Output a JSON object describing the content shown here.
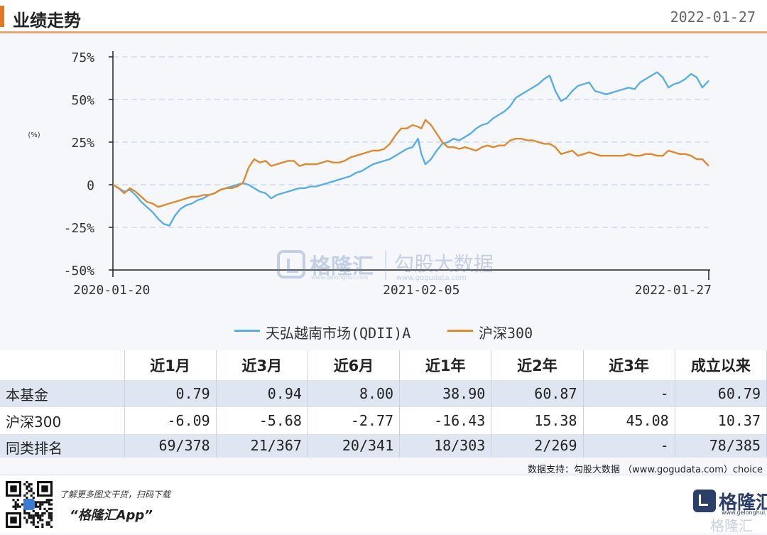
{
  "header": {
    "title": "业绩走势",
    "date": "2022-01-27"
  },
  "colors": {
    "fund": "#5aaee6",
    "index": "#de8a2e",
    "accent": "#e07a2a",
    "grid": "#c8d6ea"
  },
  "chart_data": {
    "type": "line",
    "ylabel": "(%)",
    "yticks": [
      "75%",
      "50%",
      "25%",
      "0",
      "-25%",
      "-50%"
    ],
    "ytick_values": [
      75,
      50,
      25,
      0,
      -25,
      -50
    ],
    "ylim": [
      -50,
      75
    ],
    "xlim": [
      "2020-01-20",
      "2022-01-27"
    ],
    "xticks": [
      "2020-01-20",
      "2021-02-05",
      "2022-01-27"
    ],
    "grid": true,
    "legend_position": "bottom",
    "series": [
      {
        "name": "天弘越南市场(QDII)A",
        "color": "#5aaee6",
        "points": [
          [
            "2020-01-20",
            0
          ],
          [
            "2020-01-27",
            -2
          ],
          [
            "2020-02-03",
            -4
          ],
          [
            "2020-02-10",
            -3
          ],
          [
            "2020-02-17",
            -6
          ],
          [
            "2020-02-24",
            -10
          ],
          [
            "2020-03-02",
            -13
          ],
          [
            "2020-03-09",
            -16
          ],
          [
            "2020-03-16",
            -20
          ],
          [
            "2020-03-23",
            -23
          ],
          [
            "2020-03-30",
            -24
          ],
          [
            "2020-04-06",
            -18
          ],
          [
            "2020-04-13",
            -14
          ],
          [
            "2020-04-20",
            -12
          ],
          [
            "2020-04-27",
            -11
          ],
          [
            "2020-05-04",
            -9
          ],
          [
            "2020-05-11",
            -8
          ],
          [
            "2020-05-18",
            -6
          ],
          [
            "2020-05-25",
            -5
          ],
          [
            "2020-06-01",
            -3
          ],
          [
            "2020-06-08",
            -2
          ],
          [
            "2020-06-15",
            -1
          ],
          [
            "2020-06-22",
            0
          ],
          [
            "2020-06-29",
            1
          ],
          [
            "2020-07-06",
            0
          ],
          [
            "2020-07-13",
            -2
          ],
          [
            "2020-07-20",
            -4
          ],
          [
            "2020-07-27",
            -5
          ],
          [
            "2020-08-03",
            -8
          ],
          [
            "2020-08-10",
            -6
          ],
          [
            "2020-08-17",
            -5
          ],
          [
            "2020-08-24",
            -4
          ],
          [
            "2020-08-31",
            -3
          ],
          [
            "2020-09-07",
            -2
          ],
          [
            "2020-09-14",
            -2
          ],
          [
            "2020-09-21",
            -1
          ],
          [
            "2020-09-28",
            -1
          ],
          [
            "2020-10-05",
            0
          ],
          [
            "2020-10-12",
            1
          ],
          [
            "2020-10-19",
            2
          ],
          [
            "2020-10-26",
            3
          ],
          [
            "2020-11-02",
            4
          ],
          [
            "2020-11-09",
            5
          ],
          [
            "2020-11-16",
            7
          ],
          [
            "2020-11-23",
            8
          ],
          [
            "2020-11-30",
            10
          ],
          [
            "2020-12-07",
            12
          ],
          [
            "2020-12-14",
            13
          ],
          [
            "2020-12-21",
            14
          ],
          [
            "2020-12-28",
            15
          ],
          [
            "2021-01-04",
            17
          ],
          [
            "2021-01-11",
            19
          ],
          [
            "2021-01-18",
            21
          ],
          [
            "2021-01-25",
            22
          ],
          [
            "2021-02-01",
            27
          ],
          [
            "2021-02-05",
            18
          ],
          [
            "2021-02-10",
            12
          ],
          [
            "2021-02-17",
            15
          ],
          [
            "2021-02-24",
            20
          ],
          [
            "2021-03-03",
            24
          ],
          [
            "2021-03-10",
            25
          ],
          [
            "2021-03-17",
            27
          ],
          [
            "2021-03-24",
            26
          ],
          [
            "2021-03-31",
            28
          ],
          [
            "2021-04-07",
            30
          ],
          [
            "2021-04-14",
            33
          ],
          [
            "2021-04-21",
            35
          ],
          [
            "2021-04-28",
            36
          ],
          [
            "2021-05-05",
            39
          ],
          [
            "2021-05-12",
            41
          ],
          [
            "2021-05-19",
            43
          ],
          [
            "2021-05-26",
            46
          ],
          [
            "2021-06-02",
            51
          ],
          [
            "2021-06-09",
            53
          ],
          [
            "2021-06-16",
            55
          ],
          [
            "2021-06-23",
            57
          ],
          [
            "2021-06-30",
            59
          ],
          [
            "2021-07-07",
            62
          ],
          [
            "2021-07-14",
            64
          ],
          [
            "2021-07-21",
            55
          ],
          [
            "2021-07-28",
            49
          ],
          [
            "2021-08-04",
            51
          ],
          [
            "2021-08-11",
            55
          ],
          [
            "2021-08-18",
            58
          ],
          [
            "2021-08-25",
            59
          ],
          [
            "2021-09-01",
            60
          ],
          [
            "2021-09-08",
            55
          ],
          [
            "2021-09-15",
            54
          ],
          [
            "2021-09-22",
            53
          ],
          [
            "2021-09-29",
            54
          ],
          [
            "2021-10-06",
            55
          ],
          [
            "2021-10-13",
            56
          ],
          [
            "2021-10-20",
            57
          ],
          [
            "2021-10-27",
            56
          ],
          [
            "2021-11-03",
            60
          ],
          [
            "2021-11-10",
            62
          ],
          [
            "2021-11-17",
            64
          ],
          [
            "2021-11-24",
            66
          ],
          [
            "2021-12-01",
            63
          ],
          [
            "2021-12-08",
            57
          ],
          [
            "2021-12-15",
            59
          ],
          [
            "2021-12-22",
            60
          ],
          [
            "2021-12-29",
            62
          ],
          [
            "2022-01-05",
            65
          ],
          [
            "2022-01-12",
            63
          ],
          [
            "2022-01-19",
            57
          ],
          [
            "2022-01-27",
            61
          ]
        ]
      },
      {
        "name": "沪深300",
        "color": "#de8a2e",
        "points": [
          [
            "2020-01-20",
            0
          ],
          [
            "2020-01-27",
            -2
          ],
          [
            "2020-02-03",
            -5
          ],
          [
            "2020-02-10",
            -2
          ],
          [
            "2020-02-17",
            -4
          ],
          [
            "2020-02-24",
            -7
          ],
          [
            "2020-03-02",
            -10
          ],
          [
            "2020-03-09",
            -11
          ],
          [
            "2020-03-16",
            -13
          ],
          [
            "2020-03-23",
            -12
          ],
          [
            "2020-03-30",
            -11
          ],
          [
            "2020-04-06",
            -10
          ],
          [
            "2020-04-13",
            -9
          ],
          [
            "2020-04-20",
            -8
          ],
          [
            "2020-04-27",
            -7
          ],
          [
            "2020-05-04",
            -7
          ],
          [
            "2020-05-11",
            -6
          ],
          [
            "2020-05-18",
            -6
          ],
          [
            "2020-05-25",
            -5
          ],
          [
            "2020-06-01",
            -3
          ],
          [
            "2020-06-08",
            -2
          ],
          [
            "2020-06-15",
            -2
          ],
          [
            "2020-06-22",
            -1
          ],
          [
            "2020-06-29",
            1
          ],
          [
            "2020-07-06",
            10
          ],
          [
            "2020-07-13",
            15
          ],
          [
            "2020-07-20",
            13
          ],
          [
            "2020-07-27",
            14
          ],
          [
            "2020-08-03",
            11
          ],
          [
            "2020-08-10",
            12
          ],
          [
            "2020-08-17",
            13
          ],
          [
            "2020-08-24",
            14
          ],
          [
            "2020-08-31",
            14
          ],
          [
            "2020-09-07",
            11
          ],
          [
            "2020-09-14",
            12
          ],
          [
            "2020-09-21",
            12
          ],
          [
            "2020-09-28",
            12
          ],
          [
            "2020-10-05",
            13
          ],
          [
            "2020-10-12",
            14
          ],
          [
            "2020-10-19",
            13
          ],
          [
            "2020-10-26",
            13
          ],
          [
            "2020-11-02",
            14
          ],
          [
            "2020-11-09",
            16
          ],
          [
            "2020-11-16",
            17
          ],
          [
            "2020-11-23",
            18
          ],
          [
            "2020-11-30",
            19
          ],
          [
            "2020-12-07",
            20
          ],
          [
            "2020-12-14",
            20
          ],
          [
            "2020-12-21",
            21
          ],
          [
            "2020-12-28",
            24
          ],
          [
            "2021-01-04",
            29
          ],
          [
            "2021-01-11",
            33
          ],
          [
            "2021-01-18",
            33
          ],
          [
            "2021-01-25",
            35
          ],
          [
            "2021-02-01",
            34
          ],
          [
            "2021-02-05",
            33
          ],
          [
            "2021-02-10",
            38
          ],
          [
            "2021-02-17",
            35
          ],
          [
            "2021-02-24",
            30
          ],
          [
            "2021-03-03",
            25
          ],
          [
            "2021-03-10",
            22
          ],
          [
            "2021-03-17",
            22
          ],
          [
            "2021-03-24",
            21
          ],
          [
            "2021-03-31",
            22
          ],
          [
            "2021-04-07",
            21
          ],
          [
            "2021-04-14",
            20
          ],
          [
            "2021-04-21",
            22
          ],
          [
            "2021-04-28",
            23
          ],
          [
            "2021-05-05",
            22
          ],
          [
            "2021-05-12",
            23
          ],
          [
            "2021-05-19",
            23
          ],
          [
            "2021-05-26",
            26
          ],
          [
            "2021-06-02",
            27
          ],
          [
            "2021-06-09",
            27
          ],
          [
            "2021-06-16",
            26
          ],
          [
            "2021-06-23",
            26
          ],
          [
            "2021-06-30",
            25
          ],
          [
            "2021-07-07",
            24
          ],
          [
            "2021-07-14",
            24
          ],
          [
            "2021-07-21",
            22
          ],
          [
            "2021-07-28",
            18
          ],
          [
            "2021-08-04",
            19
          ],
          [
            "2021-08-11",
            20
          ],
          [
            "2021-08-18",
            17
          ],
          [
            "2021-08-25",
            18
          ],
          [
            "2021-09-01",
            19
          ],
          [
            "2021-09-08",
            18
          ],
          [
            "2021-09-15",
            17
          ],
          [
            "2021-09-22",
            17
          ],
          [
            "2021-09-29",
            17
          ],
          [
            "2021-10-06",
            17
          ],
          [
            "2021-10-13",
            17
          ],
          [
            "2021-10-20",
            18
          ],
          [
            "2021-10-27",
            17
          ],
          [
            "2021-11-03",
            17
          ],
          [
            "2021-11-10",
            18
          ],
          [
            "2021-11-17",
            18
          ],
          [
            "2021-11-24",
            17
          ],
          [
            "2021-12-01",
            17
          ],
          [
            "2021-12-08",
            20
          ],
          [
            "2021-12-15",
            19
          ],
          [
            "2021-12-22",
            18
          ],
          [
            "2021-12-29",
            18
          ],
          [
            "2022-01-05",
            17
          ],
          [
            "2022-01-12",
            15
          ],
          [
            "2022-01-19",
            15
          ],
          [
            "2022-01-27",
            11
          ]
        ]
      }
    ]
  },
  "watermark": {
    "brand": "格隆汇",
    "brand_sub": "www.gelonghui.com",
    "gogu": "勾股大数据",
    "gogu_sub": "www.gogudata.com"
  },
  "table": {
    "headers": [
      "",
      "近1月",
      "近3月",
      "近6月",
      "近1年",
      "近2年",
      "近3年",
      "成立以来"
    ],
    "rows": [
      [
        "本基金",
        "0.79",
        "0.94",
        "8.00",
        "38.90",
        "60.87",
        "-",
        "60.79"
      ],
      [
        "沪深300",
        "-6.09",
        "-5.68",
        "-2.77",
        "-16.43",
        "15.38",
        "45.08",
        "10.37"
      ],
      [
        "同类排名",
        "69/378",
        "21/367",
        "20/341",
        "18/303",
        "2/269",
        "-",
        "78/385"
      ]
    ]
  },
  "source": "数据支持：勾股大数据 （www.gogudata.com）choice",
  "footer": {
    "tip": "了解更多图文干货，扫码下载",
    "app": "“格隆汇App”",
    "logo_text": "格隆汇",
    "logo_sub": "www.gelonghui.com",
    "logo_watermark": "格隆汇"
  }
}
